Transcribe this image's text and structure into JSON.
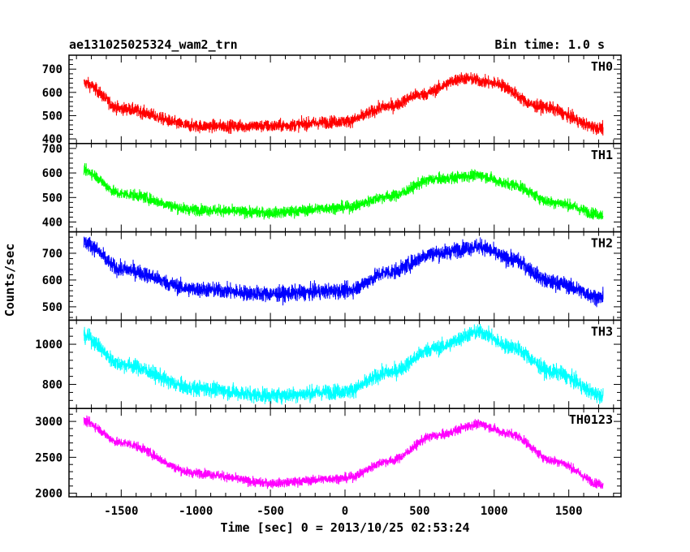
{
  "header": {
    "left_title": "ae131025025324_wam2_trn",
    "right_title": "Bin time: 1.0 s"
  },
  "chart_data": {
    "type": "line",
    "xlabel": "Time [sec] 0 = 2013/10/25 02:53:24",
    "ylabel": "Counts/sec",
    "xlim": [
      -1850,
      1850
    ],
    "xticks": [
      -1500,
      -1000,
      -500,
      0,
      500,
      1000,
      1500
    ],
    "data_x_range": [
      -1750,
      1730
    ],
    "bin_time_s": 1.0,
    "panels": [
      {
        "name": "TH0",
        "color": "#ff0000",
        "ylim": [
          380,
          760
        ],
        "yticks": [
          400,
          500,
          600,
          700
        ],
        "trend": [
          [
            -1750,
            640
          ],
          [
            -1500,
            530
          ],
          [
            -1000,
            455
          ],
          [
            -500,
            455
          ],
          [
            0,
            475
          ],
          [
            300,
            540
          ],
          [
            500,
            590
          ],
          [
            800,
            660
          ],
          [
            1000,
            640
          ],
          [
            1300,
            540
          ],
          [
            1730,
            445
          ]
        ],
        "noise": 35
      },
      {
        "name": "TH1",
        "color": "#00ff00",
        "ylim": [
          360,
          720
        ],
        "yticks": [
          400,
          500,
          600,
          700
        ],
        "trend": [
          [
            -1750,
            610
          ],
          [
            -1500,
            515
          ],
          [
            -1000,
            450
          ],
          [
            -500,
            438
          ],
          [
            0,
            460
          ],
          [
            300,
            505
          ],
          [
            600,
            575
          ],
          [
            900,
            590
          ],
          [
            1100,
            555
          ],
          [
            1400,
            480
          ],
          [
            1730,
            430
          ]
        ],
        "noise": 30
      },
      {
        "name": "TH2",
        "color": "#0000ff",
        "ylim": [
          450,
          780
        ],
        "yticks": [
          500,
          600,
          700
        ],
        "trend": [
          [
            -1750,
            740
          ],
          [
            -1500,
            640
          ],
          [
            -1000,
            565
          ],
          [
            -500,
            548
          ],
          [
            0,
            560
          ],
          [
            300,
            630
          ],
          [
            600,
            700
          ],
          [
            900,
            725
          ],
          [
            1100,
            680
          ],
          [
            1400,
            590
          ],
          [
            1730,
            535
          ]
        ],
        "noise": 38
      },
      {
        "name": "TH3",
        "color": "#00ffff",
        "ylim": [
          680,
          1120
        ],
        "yticks": [
          800,
          1000
        ],
        "trend": [
          [
            -1750,
            1040
          ],
          [
            -1500,
            900
          ],
          [
            -1000,
            780
          ],
          [
            -500,
            745
          ],
          [
            0,
            765
          ],
          [
            300,
            860
          ],
          [
            600,
            980
          ],
          [
            900,
            1060
          ],
          [
            1100,
            990
          ],
          [
            1400,
            860
          ],
          [
            1730,
            745
          ]
        ],
        "noise": 50
      },
      {
        "name": "TH0123",
        "color": "#ff00ff",
        "ylim": [
          1950,
          3180
        ],
        "yticks": [
          2000,
          2500,
          3000
        ],
        "trend": [
          [
            -1750,
            3000
          ],
          [
            -1500,
            2700
          ],
          [
            -1000,
            2280
          ],
          [
            -500,
            2140
          ],
          [
            0,
            2210
          ],
          [
            300,
            2450
          ],
          [
            600,
            2800
          ],
          [
            900,
            2960
          ],
          [
            1100,
            2830
          ],
          [
            1400,
            2450
          ],
          [
            1730,
            2120
          ]
        ],
        "noise": 85
      }
    ]
  }
}
